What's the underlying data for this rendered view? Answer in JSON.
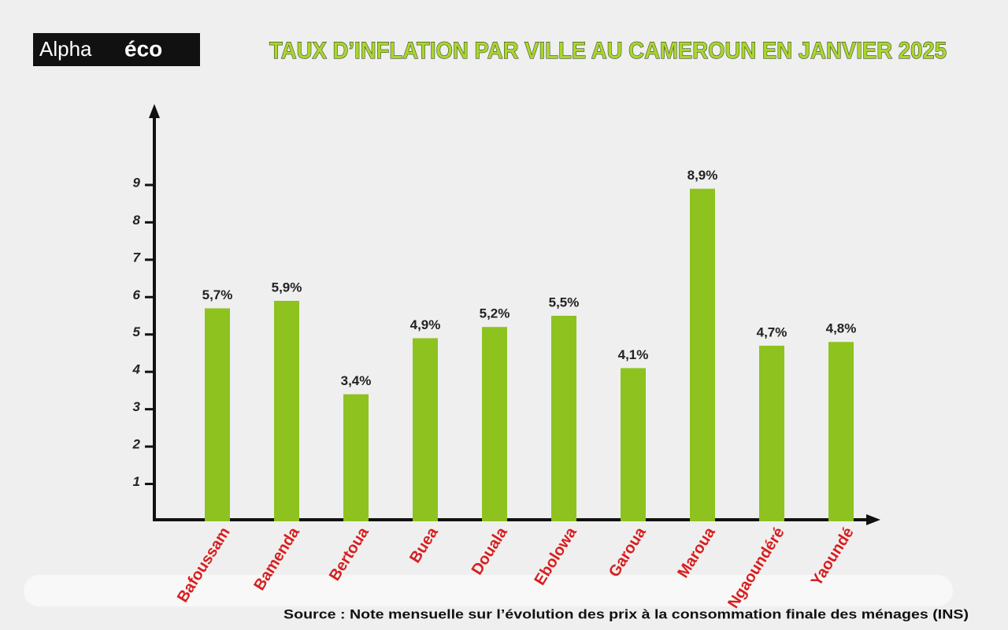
{
  "logo": {
    "part1": "Alpha",
    "part2": "éco"
  },
  "chart_data": {
    "type": "bar",
    "title": "TAUX D’INFLATION PAR VILLE AU CAMEROUN EN JANVIER 2025",
    "categories": [
      "Bafoussam",
      "Bamenda",
      "Bertoua",
      "Buea",
      "Douala",
      "Ebolowa",
      "Garoua",
      "Maroua",
      "Ngaoundéré",
      "Yaoundé"
    ],
    "values": [
      5.7,
      5.9,
      3.4,
      4.9,
      5.2,
      5.5,
      4.1,
      8.9,
      4.7,
      4.8
    ],
    "value_labels": [
      "5,7%",
      "5,9%",
      "3,4%",
      "4,9%",
      "5,2%",
      "5,5%",
      "4,1%",
      "8,9%",
      "4,7%",
      "4,8%"
    ],
    "color": "#8dc21f",
    "ylim": [
      0,
      11
    ],
    "yticks": [
      1,
      2,
      3,
      4,
      5,
      6,
      7,
      8,
      9
    ],
    "source": "Source : Note mensuelle sur l’évolution des prix à la consommation finale des ménages (INS)"
  }
}
